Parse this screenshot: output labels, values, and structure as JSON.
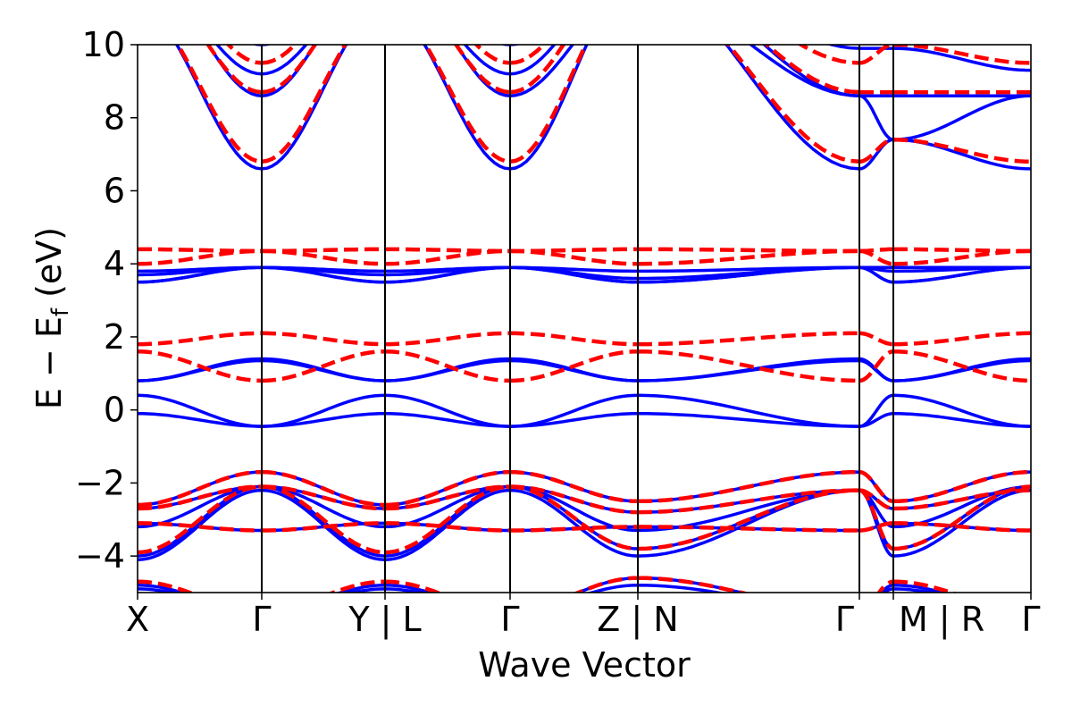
{
  "chart_data": {
    "type": "line",
    "title": "",
    "xlabel": "Wave Vector",
    "ylabel": "E − E_f (eV)",
    "ylabel_main": "E − E",
    "ylabel_sub": "f",
    "ylabel_unit": " (eV)",
    "ylim": [
      -5,
      10
    ],
    "yticks": [
      10,
      8,
      6,
      4,
      2,
      0,
      -2,
      -4
    ],
    "ytick_labels": [
      "10",
      "8",
      "6",
      "4",
      "2",
      "0",
      "−2",
      "−4"
    ],
    "grid": false,
    "legend": "none",
    "kpath_labels": [
      "X",
      "Γ",
      "Y | L",
      "Γ",
      "Z | N",
      "Γ",
      "M | R",
      "Γ"
    ],
    "kpath_positions": [
      0,
      1,
      2,
      3,
      4,
      5,
      6,
      7
    ],
    "segments": [
      "X-Γ",
      "Γ-Y",
      "L-Γ",
      "Γ-Z",
      "N-Γ",
      "M-R gap",
      "R-Γ"
    ],
    "series": [
      {
        "name": "solid blue bands",
        "color": "#0000ff",
        "style": "solid",
        "bands": [
          {
            "x": [
              0,
              1,
              2,
              3,
              4,
              5,
              6,
              7
            ],
            "y": [
              12.5,
              10.0,
              12.5,
              10.0,
              12.6,
              9.9,
              9.9,
              9.3
            ]
          },
          {
            "x": [
              0,
              1,
              2,
              3,
              4,
              5,
              6,
              7
            ],
            "y": [
              12.0,
              9.2,
              12.0,
              9.2,
              12.2,
              8.6,
              8.6,
              8.6
            ]
          },
          {
            "x": [
              0,
              1,
              2,
              3,
              4,
              5,
              6,
              7
            ],
            "y": [
              12.2,
              8.6,
              12.2,
              8.6,
              11.5,
              8.6,
              7.4,
              8.6
            ]
          },
          {
            "x": [
              0,
              1,
              2,
              3,
              4,
              5,
              6,
              7
            ],
            "y": [
              11.0,
              6.6,
              11.0,
              6.6,
              11.8,
              6.6,
              7.4,
              6.6
            ]
          },
          {
            "x": [
              0,
              1,
              2,
              3,
              4,
              5,
              6,
              7
            ],
            "y": [
              3.8,
              3.9,
              3.8,
              3.9,
              3.8,
              3.9,
              3.9,
              3.9
            ]
          },
          {
            "x": [
              0,
              1,
              2,
              3,
              4,
              5,
              6,
              7
            ],
            "y": [
              3.7,
              3.9,
              3.7,
              3.9,
              3.6,
              3.9,
              3.8,
              3.9
            ]
          },
          {
            "x": [
              0,
              1,
              2,
              3,
              4,
              5,
              6,
              7
            ],
            "y": [
              3.5,
              3.9,
              3.5,
              3.9,
              3.5,
              3.9,
              3.5,
              3.9
            ]
          },
          {
            "x": [
              0,
              1,
              2,
              3,
              4,
              5,
              6,
              7
            ],
            "y": [
              3.5,
              3.9,
              3.5,
              3.9,
              3.5,
              3.9,
              3.5,
              3.9
            ]
          },
          {
            "x": [
              0,
              1,
              2,
              3,
              4,
              5,
              6,
              7
            ],
            "y": [
              0.8,
              1.4,
              0.8,
              1.4,
              0.8,
              1.4,
              0.8,
              1.4
            ]
          },
          {
            "x": [
              0,
              1,
              2,
              3,
              4,
              5,
              6,
              7
            ],
            "y": [
              0.8,
              1.35,
              0.8,
              1.35,
              0.8,
              1.35,
              0.8,
              1.35
            ]
          },
          {
            "x": [
              0,
              1,
              2,
              3,
              4,
              5,
              6,
              7
            ],
            "y": [
              0.4,
              -0.45,
              0.4,
              -0.45,
              0.4,
              -0.45,
              0.4,
              -0.45
            ]
          },
          {
            "x": [
              0,
              1,
              2,
              3,
              4,
              5,
              6,
              7
            ],
            "y": [
              -0.1,
              -0.45,
              -0.1,
              -0.45,
              -0.1,
              -0.45,
              -0.1,
              -0.45
            ]
          },
          {
            "x": [
              0,
              1,
              2,
              3,
              4,
              5,
              6,
              7
            ],
            "y": [
              -2.6,
              -1.7,
              -2.6,
              -1.7,
              -2.5,
              -1.7,
              -2.5,
              -1.7
            ]
          },
          {
            "x": [
              0,
              1,
              2,
              3,
              4,
              5,
              6,
              7
            ],
            "y": [
              -2.7,
              -2.1,
              -2.7,
              -2.1,
              -2.8,
              -2.2,
              -2.7,
              -2.2
            ]
          },
          {
            "x": [
              0,
              1,
              2,
              3,
              4,
              5,
              6,
              7
            ],
            "y": [
              -3.1,
              -3.3,
              -3.1,
              -3.3,
              -3.2,
              -3.3,
              -3.1,
              -3.3
            ]
          },
          {
            "x": [
              0,
              1,
              2,
              3,
              4,
              5,
              6,
              7
            ],
            "y": [
              -3.2,
              -2.1,
              -3.2,
              -2.1,
              -3.3,
              -2.2,
              -3.2,
              -2.1
            ]
          },
          {
            "x": [
              0,
              1,
              2,
              3,
              4,
              5,
              6,
              7
            ],
            "y": [
              -4.0,
              -2.1,
              -4.0,
              -2.1,
              -3.8,
              -2.2,
              -3.8,
              -2.1
            ]
          },
          {
            "x": [
              0,
              1,
              2,
              3,
              4,
              5,
              6,
              7
            ],
            "y": [
              -4.1,
              -2.2,
              -4.1,
              -2.2,
              -4.0,
              -2.2,
              -4.0,
              -2.2
            ]
          },
          {
            "x": [
              0,
              1,
              2,
              3,
              4,
              5,
              6,
              7
            ],
            "y": [
              -4.8,
              -5.5,
              -4.8,
              -5.5,
              -4.6,
              -5.5,
              -4.8,
              -5.5
            ]
          },
          {
            "x": [
              0,
              1,
              2,
              3,
              4,
              5,
              6,
              7
            ],
            "y": [
              -4.9,
              -5.5,
              -4.9,
              -5.5,
              -4.8,
              -5.5,
              -4.9,
              -5.5
            ]
          }
        ]
      },
      {
        "name": "dashed red bands",
        "color": "#ff0000",
        "style": "dashed",
        "bands": [
          {
            "x": [
              0,
              1,
              2,
              3,
              4,
              5,
              6,
              7
            ],
            "y": [
              12.5,
              9.5,
              12.5,
              9.5,
              12.6,
              9.5,
              10.0,
              9.5
            ]
          },
          {
            "x": [
              0,
              1,
              2,
              3,
              4,
              5,
              6,
              7
            ],
            "y": [
              12.0,
              8.7,
              12.0,
              8.7,
              12.2,
              8.7,
              8.7,
              8.7
            ]
          },
          {
            "x": [
              0,
              1,
              2,
              3,
              4,
              5,
              6,
              7
            ],
            "y": [
              11.0,
              6.8,
              11.0,
              6.8,
              11.8,
              6.8,
              7.4,
              6.8
            ]
          },
          {
            "x": [
              0,
              1,
              2,
              3,
              4,
              5,
              6,
              7
            ],
            "y": [
              4.4,
              4.35,
              4.4,
              4.35,
              4.4,
              4.35,
              4.4,
              4.35
            ]
          },
          {
            "x": [
              0,
              1,
              2,
              3,
              4,
              5,
              6,
              7
            ],
            "y": [
              4.0,
              4.35,
              4.0,
              4.35,
              4.0,
              4.35,
              4.0,
              4.35
            ]
          },
          {
            "x": [
              0,
              1,
              2,
              3,
              4,
              5,
              6,
              7
            ],
            "y": [
              1.8,
              2.1,
              1.8,
              2.1,
              1.8,
              2.1,
              1.8,
              2.1
            ]
          },
          {
            "x": [
              0,
              1,
              2,
              3,
              4,
              5,
              6,
              7
            ],
            "y": [
              1.6,
              0.8,
              1.6,
              0.8,
              1.6,
              0.8,
              1.6,
              0.8
            ]
          },
          {
            "x": [
              0,
              1,
              2,
              3,
              4,
              5,
              6,
              7
            ],
            "y": [
              -2.6,
              -1.7,
              -2.6,
              -1.7,
              -2.5,
              -1.7,
              -2.5,
              -1.7
            ]
          },
          {
            "x": [
              0,
              1,
              2,
              3,
              4,
              5,
              6,
              7
            ],
            "y": [
              -2.7,
              -2.1,
              -2.7,
              -2.1,
              -2.8,
              -2.2,
              -2.7,
              -2.2
            ]
          },
          {
            "x": [
              0,
              1,
              2,
              3,
              4,
              5,
              6,
              7
            ],
            "y": [
              -3.1,
              -3.3,
              -3.1,
              -3.3,
              -3.2,
              -3.3,
              -3.1,
              -3.3
            ]
          },
          {
            "x": [
              0,
              1,
              2,
              3,
              4,
              5,
              6,
              7
            ],
            "y": [
              -3.9,
              -2.1,
              -3.9,
              -2.1,
              -3.8,
              -2.2,
              -3.8,
              -2.1
            ]
          },
          {
            "x": [
              0,
              1,
              2,
              3,
              4,
              5,
              6,
              7
            ],
            "y": [
              -4.7,
              -5.5,
              -4.7,
              -5.5,
              -4.6,
              -5.5,
              -4.7,
              -5.5
            ]
          }
        ]
      }
    ]
  }
}
